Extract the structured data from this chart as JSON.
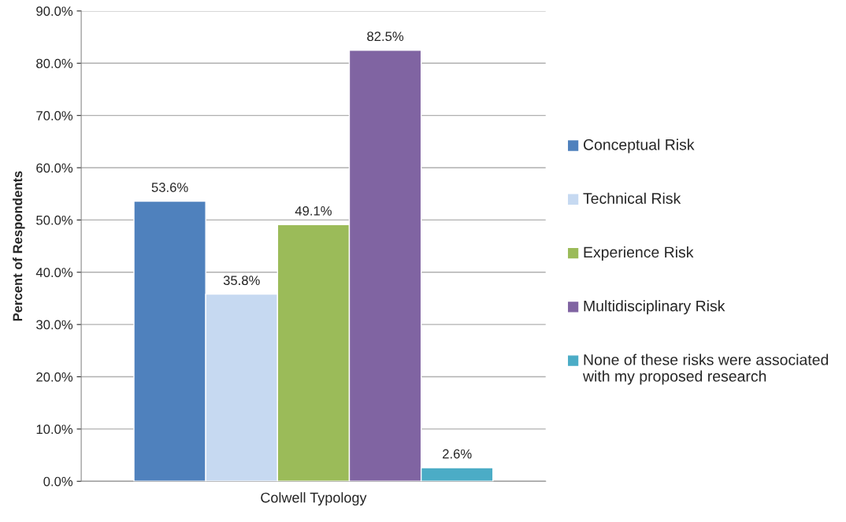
{
  "chart_data": {
    "type": "bar",
    "categories": [
      "Colwell Typology"
    ],
    "ylabel": "Percent of Respondents",
    "series": [
      {
        "name": "Conceptual Risk",
        "color": "#4f81bd",
        "values": [
          53.6
        ]
      },
      {
        "name": "Technical Risk",
        "color": "#c6d9f1",
        "values": [
          35.8
        ]
      },
      {
        "name": "Experience Risk",
        "color": "#9bbb59",
        "values": [
          49.1
        ]
      },
      {
        "name": "Multidisciplinary Risk",
        "color": "#8064a2",
        "values": [
          82.5
        ]
      },
      {
        "name": "None of these risks were associated with my proposed research",
        "color": "#4bacc6",
        "values": [
          2.6
        ]
      }
    ],
    "ylim": [
      0,
      90
    ],
    "yticks": [
      {
        "value": 0,
        "label": "0.0%"
      },
      {
        "value": 10,
        "label": "10.0%"
      },
      {
        "value": 20,
        "label": "20.0%"
      },
      {
        "value": 30,
        "label": "30.0%"
      },
      {
        "value": 40,
        "label": "40.0%"
      },
      {
        "value": 50,
        "label": "50.0%"
      },
      {
        "value": 60,
        "label": "60.0%"
      },
      {
        "value": 70,
        "label": "70.0%"
      },
      {
        "value": 80,
        "label": "80.0%"
      },
      {
        "value": 90,
        "label": "90.0%"
      }
    ],
    "value_labels": [
      "53.6%",
      "35.8%",
      "49.1%",
      "82.5%",
      "2.6%"
    ],
    "grid": "y",
    "legend": "right"
  }
}
